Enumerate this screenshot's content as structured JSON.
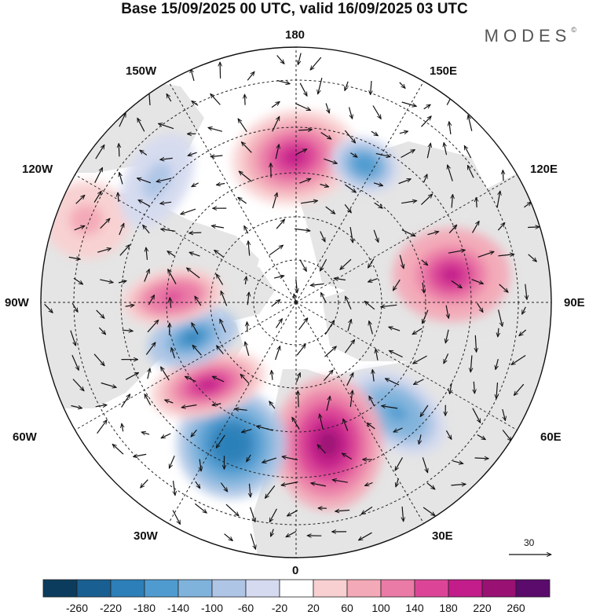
{
  "title": "Base 15/09/2025 00 UTC, valid 16/09/2025 03 UTC",
  "logo": {
    "text": "MODES",
    "mark": "©"
  },
  "longitude_labels": {
    "top": "180",
    "top_left": "150W",
    "top_right": "150E",
    "upper_left": "120W",
    "upper_right": "120E",
    "left": "90W",
    "right": "90E",
    "lower_left": "60W",
    "lower_right": "60E",
    "bottom_left": "30W",
    "bottom_right": "30E",
    "bottom": "0"
  },
  "vector_scale": {
    "label": "30"
  },
  "colorbar": {
    "levels": [
      "-260",
      "-220",
      "-180",
      "-140",
      "-100",
      "-60",
      "-20",
      "20",
      "60",
      "100",
      "140",
      "180",
      "220",
      "260"
    ],
    "colors": [
      "#0b3c5d",
      "#1a5f91",
      "#2c7fb8",
      "#4f9bcf",
      "#7fb3dc",
      "#aec5e6",
      "#d5daf0",
      "#ffffff",
      "#f8d0d2",
      "#f3a9b7",
      "#ea7aa6",
      "#dc4597",
      "#c21d8a",
      "#981173",
      "#5a0b6b"
    ]
  },
  "map": {
    "land_color": "#e5e5e5",
    "anomalies": [
      {
        "name": "positive-over-bering-strait",
        "sign": "positive",
        "value": 180
      },
      {
        "name": "negative-over-east-siberia",
        "sign": "negative",
        "value": -180
      },
      {
        "name": "positive-over-west-siberia",
        "sign": "positive",
        "value": 200
      },
      {
        "name": "negative-over-kara-sea",
        "sign": "negative",
        "value": -160
      },
      {
        "name": "positive-over-scandinavia",
        "sign": "positive",
        "value": 220
      },
      {
        "name": "negative-over-north-atlantic",
        "sign": "negative",
        "value": -220
      },
      {
        "name": "positive-over-labrador",
        "sign": "positive",
        "value": 180
      },
      {
        "name": "negative-over-hudson-bay",
        "sign": "negative",
        "value": -200
      },
      {
        "name": "positive-over-canada",
        "sign": "positive",
        "value": 160
      },
      {
        "name": "positive-over-gulf-of-alaska",
        "sign": "positive",
        "value": 80
      },
      {
        "name": "negative-over-north-pacific",
        "sign": "negative",
        "value": -80
      }
    ]
  }
}
